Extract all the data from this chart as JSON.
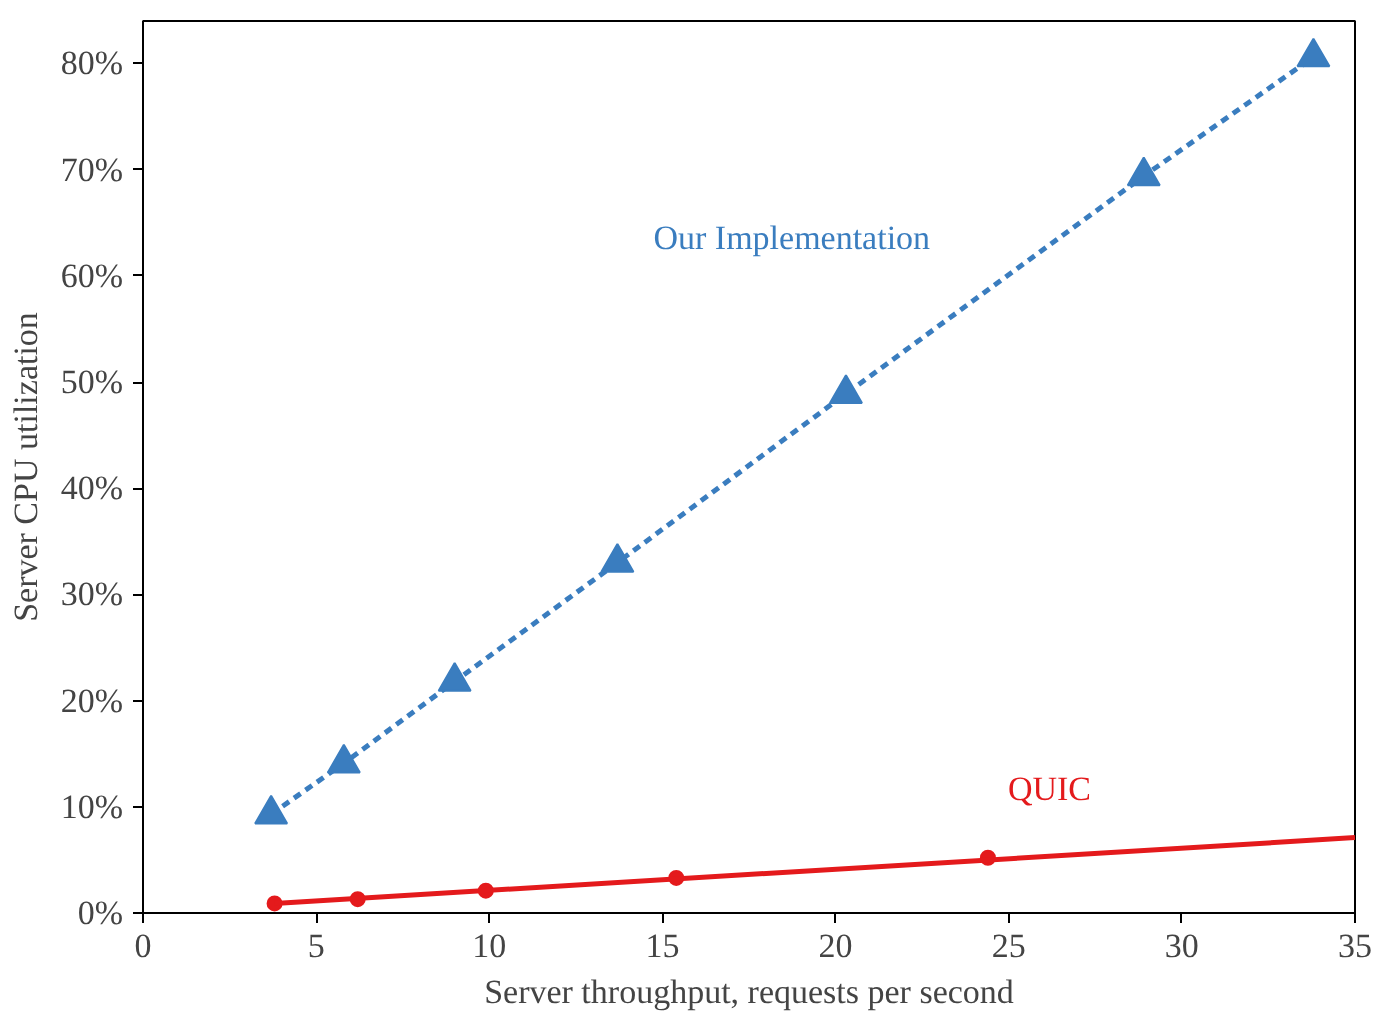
{
  "chart_data": {
    "type": "line",
    "xlabel": "Server throughput, requests per second",
    "ylabel": "Server CPU utilization",
    "xlim": [
      0,
      35
    ],
    "xticks": [
      0,
      5,
      10,
      15,
      20,
      25,
      30,
      35
    ],
    "ylim": [
      0,
      84
    ],
    "yticks": [
      {
        "value": 0,
        "label": "0%"
      },
      {
        "value": 10,
        "label": "10%"
      },
      {
        "value": 20,
        "label": "20%"
      },
      {
        "value": 30,
        "label": "30%"
      },
      {
        "value": 40,
        "label": "40%"
      },
      {
        "value": 50,
        "label": "50%"
      },
      {
        "value": 60,
        "label": "60%"
      },
      {
        "value": 70,
        "label": "70%"
      },
      {
        "value": 80,
        "label": "80%"
      }
    ],
    "grid": false,
    "series": [
      {
        "name": "Our Implementation",
        "color": "#3a7dbf",
        "marker": "triangle",
        "line_style": "dashed",
        "x": [
          3.7,
          5.8,
          9.0,
          13.7,
          20.3,
          28.9,
          33.8
        ],
        "values": [
          9.3,
          14.1,
          21.8,
          33.0,
          48.9,
          69.4,
          80.6
        ]
      },
      {
        "name": "QUIC",
        "color": "#e41a1c",
        "type": "scatter",
        "marker": "circle",
        "x": [
          3.8,
          6.2,
          9.9,
          15.4,
          24.4
        ],
        "values": [
          0.9,
          1.3,
          2.1,
          3.3,
          5.2
        ]
      },
      {
        "color": "#e41a1c",
        "type": "line",
        "line_style": "solid",
        "x": [
          3.8,
          35
        ],
        "values": [
          0.9,
          7.1
        ]
      }
    ]
  }
}
